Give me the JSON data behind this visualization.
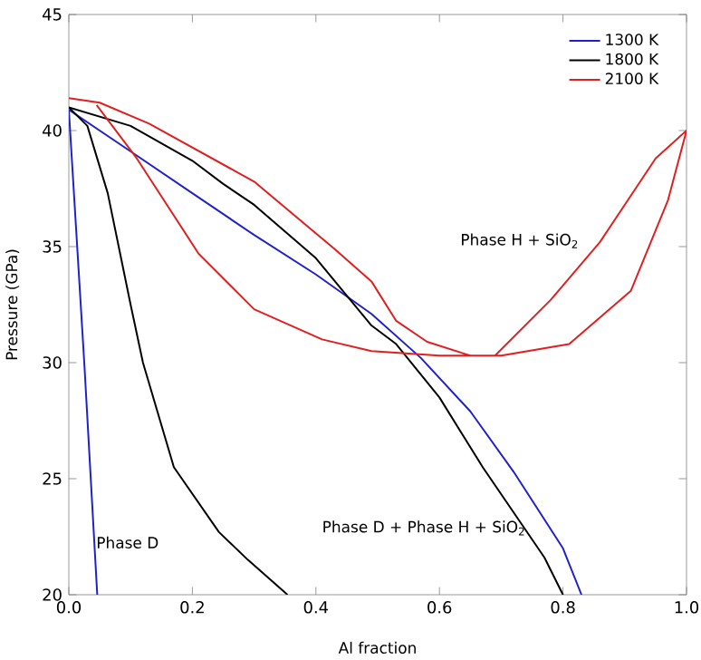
{
  "chart_data": {
    "type": "line",
    "xlabel": "Al fraction",
    "ylabel": "Pressure (GPa)",
    "xlim": [
      0,
      1
    ],
    "ylim": [
      20,
      45
    ],
    "xticks": [
      {
        "value": 0,
        "label": "0.0"
      },
      {
        "value": 0.2,
        "label": "0.2"
      },
      {
        "value": 0.4,
        "label": "0.4"
      },
      {
        "value": 0.6,
        "label": "0.6"
      },
      {
        "value": 0.8,
        "label": "0.8"
      },
      {
        "value": 1,
        "label": "1.0"
      }
    ],
    "yticks": [
      20,
      25,
      30,
      35,
      40,
      45
    ],
    "grid": false,
    "legend": "top right",
    "marker": "none",
    "line_style": "solid",
    "annotations": [
      "Phase H + SiO$_{2}$",
      "Phase D + Phase H + SiO$_{2}$",
      "Phase D"
    ],
    "series": [
      {
        "name": "1300 K",
        "color": "#2020d0",
        "x": [
          0,
          0.1,
          0.2,
          0.3,
          0.4,
          0.49,
          0.57,
          0.65,
          0.72,
          0.8,
          0.83
        ],
        "values": [
          40.9,
          39.1,
          37.3,
          35.5,
          33.8,
          32.1,
          30.2,
          27.9,
          25.3,
          22.0,
          20
        ]
      },
      {
        "name": "1800 K",
        "color": "#000000",
        "x": [
          0,
          0.1,
          0.2,
          0.25,
          0.3,
          0.4,
          0.49,
          0.53,
          0.6,
          0.67,
          0.77,
          0.8
        ],
        "values": [
          41.0,
          40.2,
          38.7,
          37.7,
          36.8,
          34.5,
          31.6,
          30.8,
          28.5,
          25.5,
          21.6,
          20
        ]
      },
      {
        "name": "2100 K",
        "color": "#e02020",
        "x": [
          0,
          0.05,
          0.13,
          0.3,
          0.43,
          0.49,
          0.53,
          0.58,
          0.65,
          0.69,
          0.78,
          0.86,
          0.95,
          1.0,
          0.97,
          0.91,
          0.81,
          0.7,
          0.6,
          0.49,
          0.41,
          0.3,
          0.21,
          0.11,
          0.045
        ],
        "values": [
          41.4,
          41.2,
          40.3,
          37.8,
          34.9,
          33.5,
          31.8,
          30.9,
          30.3,
          30.3,
          32.7,
          35.2,
          38.8,
          40,
          37.0,
          33.1,
          30.8,
          30.3,
          30.3,
          30.5,
          31.0,
          32.3,
          34.7,
          38.8,
          41.1
        ]
      },
      {
        "color": "#2020d0",
        "x": [
          0,
          0.025,
          0.046
        ],
        "values": [
          40.9,
          30.0,
          20
        ]
      },
      {
        "color": "#000000",
        "x": [
          0,
          0.03,
          0.063,
          0.1,
          0.12,
          0.17,
          0.243,
          0.29,
          0.354
        ],
        "values": [
          41.0,
          40.2,
          37.3,
          32.5,
          30.0,
          25.5,
          22.7,
          21.5,
          20
        ]
      }
    ]
  }
}
